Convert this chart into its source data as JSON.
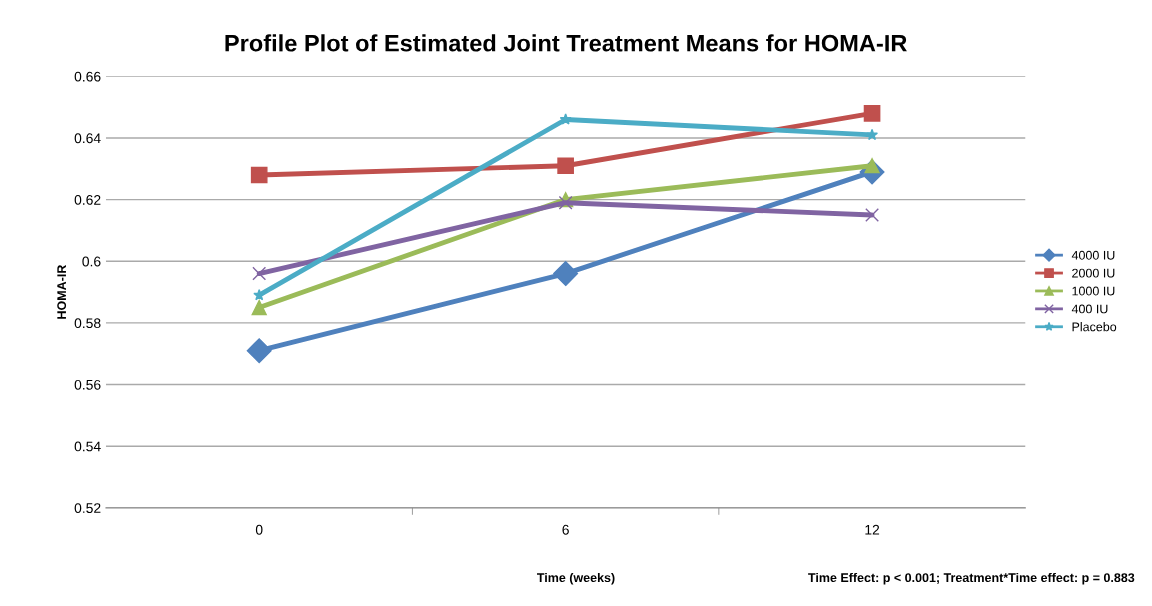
{
  "chart_data": {
    "type": "line",
    "title": "Profile Plot of Estimated Joint Treatment Means for HOMA-IR",
    "xlabel": "Time (weeks)",
    "ylabel": "HOMA-IR",
    "categories": [
      "0",
      "6",
      "12"
    ],
    "series": [
      {
        "name": "4000 IU",
        "color": "#4f81bd",
        "marker": "diamond",
        "values": [
          0.571,
          0.596,
          0.629
        ]
      },
      {
        "name": "2000 IU",
        "color": "#c0504d",
        "marker": "square",
        "values": [
          0.628,
          0.631,
          0.648
        ]
      },
      {
        "name": "1000 IU",
        "color": "#9bbb59",
        "marker": "triangle",
        "values": [
          0.585,
          0.62,
          0.631
        ]
      },
      {
        "name": "400 IU",
        "color": "#8064a2",
        "marker": "cross",
        "values": [
          0.596,
          0.619,
          0.615
        ]
      },
      {
        "name": "Placebo",
        "color": "#4bacc6",
        "marker": "star",
        "values": [
          0.589,
          0.646,
          0.641
        ]
      }
    ],
    "ylim": [
      0.52,
      0.66
    ],
    "yticks": [
      0.52,
      0.54,
      0.56,
      0.58,
      0.6,
      0.62,
      0.64,
      0.66
    ],
    "grid": "y",
    "legend": "right",
    "line_style": "solid",
    "annotations": [
      "Time Effect: p < 0.001; Treatment*Time effect: p = 0.883"
    ]
  }
}
